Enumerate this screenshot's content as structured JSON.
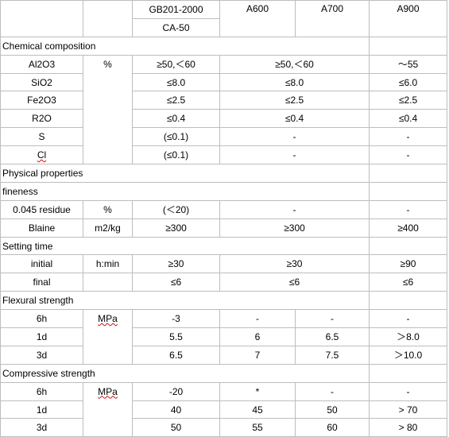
{
  "header": {
    "standard": "GB201-2000",
    "grade": "CA-50",
    "columns": [
      "A600",
      "A700",
      "A900"
    ]
  },
  "sections": {
    "chemical": "Chemical composition",
    "physical": "Physical properties",
    "fineness": "fineness",
    "setting": "Setting time",
    "flexural": "Flexural strength",
    "compressive": "Compressive strength"
  },
  "rows": {
    "al2o3": {
      "label": "Al2O3",
      "unit": "%",
      "gb": "≥50,＜60",
      "a600_a700": "≥50,＜60",
      "a900": "～55"
    },
    "sio2": {
      "label": "SiO2",
      "gb": "≤8.0",
      "a600_a700": "≤8.0",
      "a900": "≤6.0"
    },
    "fe2o3": {
      "label": "Fe2O3",
      "gb": "≤2.5",
      "a600_a700": "≤2.5",
      "a900": "≤2.5"
    },
    "r2o": {
      "label": "R2O",
      "gb": "≤0.4",
      "a600_a700": "≤0.4",
      "a900": "≤0.4"
    },
    "s": {
      "label": "S",
      "gb": "(≤0.1)",
      "a600_a700": "-",
      "a900": "-"
    },
    "cl": {
      "label": "Cl",
      "gb": "(≤0.1)",
      "a600_a700": "-",
      "a900": "-"
    },
    "residue": {
      "label": "0.045 residue",
      "unit": "%",
      "gb": "(＜20)",
      "a600_a700": "-",
      "a900": "-"
    },
    "blaine": {
      "label": "Blaine",
      "unit": "m2/kg",
      "gb": "≥300",
      "a600_a700": "≥300",
      "a900": "≥400"
    },
    "initial": {
      "label": "initial",
      "unit": "h:min",
      "gb": "≥30",
      "a600_a700": "≥30",
      "a900": "≥90"
    },
    "final": {
      "label": "final",
      "gb": "≤6",
      "a600_a700": "≤6",
      "a900": "≤6"
    },
    "flex_6h": {
      "label": "6h",
      "unit": "MPa",
      "gb": "-3",
      "a600": "-",
      "a700": "-",
      "a900": "-"
    },
    "flex_1d": {
      "label": "1d",
      "gb": "5.5",
      "a600": "6",
      "a700": "6.5",
      "a900": "＞8.0"
    },
    "flex_3d": {
      "label": "3d",
      "gb": "6.5",
      "a600": "7",
      "a700": "7.5",
      "a900": "＞10.0"
    },
    "comp_6h": {
      "label": "6h",
      "unit": "MPa",
      "gb": "-20",
      "a600": "*",
      "a700": "-",
      "a900": "-"
    },
    "comp_1d": {
      "label": "1d",
      "gb": "40",
      "a600": "45",
      "a700": "50",
      "a900": "> 70"
    },
    "comp_3d": {
      "label": "3d",
      "gb": "50",
      "a600": "55",
      "a700": "60",
      "a900": "> 80"
    }
  }
}
